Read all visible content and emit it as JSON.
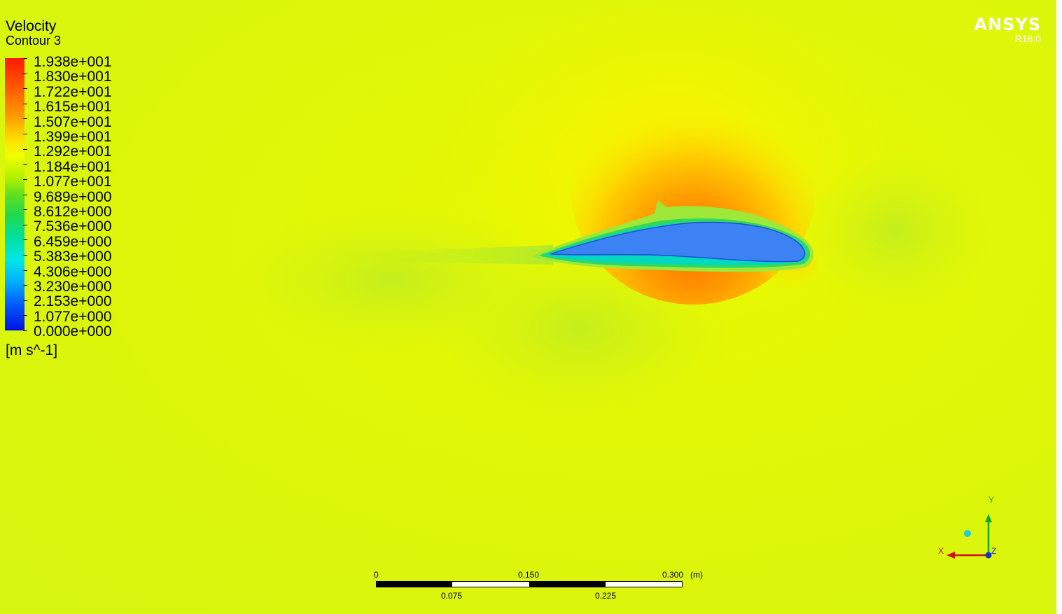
{
  "legend": {
    "title": "Velocity",
    "subtitle": "Contour 3",
    "unit": "[m s^-1]",
    "values": [
      "1.938e+001",
      "1.830e+001",
      "1.722e+001",
      "1.615e+001",
      "1.507e+001",
      "1.399e+001",
      "1.292e+001",
      "1.184e+001",
      "1.077e+001",
      "9.689e+000",
      "8.612e+000",
      "7.536e+000",
      "6.459e+000",
      "5.383e+000",
      "4.306e+000",
      "3.230e+000",
      "2.153e+000",
      "1.077e+000",
      "0.000e+000"
    ]
  },
  "brand": {
    "name": "ANSYS",
    "version": "R18.0"
  },
  "scale": {
    "top_labels": [
      "0",
      "0.150",
      "0.300"
    ],
    "bottom_labels": [
      "0.075",
      "0.225"
    ],
    "unit": "(m)"
  },
  "axes": {
    "y": "Y",
    "x": "X",
    "z": "Z"
  },
  "colors": {
    "background": "#dcf70a",
    "airfoil": "#3d82f5",
    "x_axis": "#cc1111",
    "y_axis": "#11aa22",
    "z_axis": "#1133cc"
  }
}
